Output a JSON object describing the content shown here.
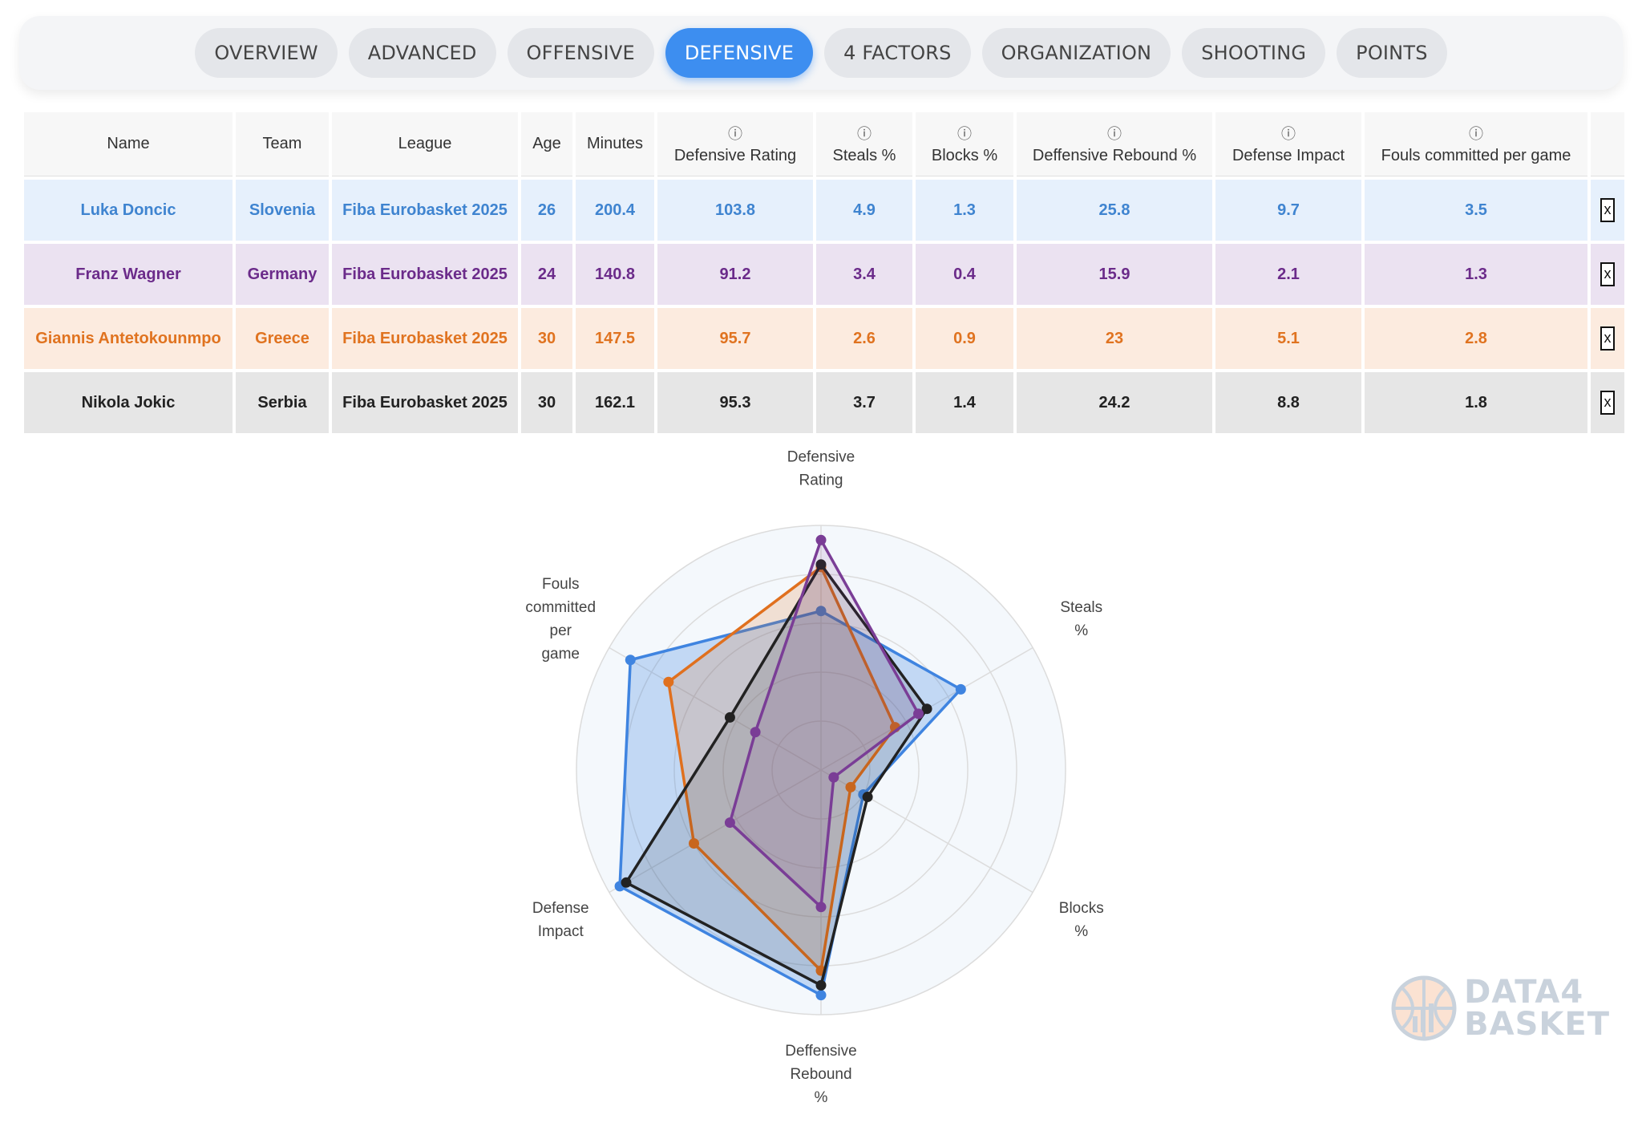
{
  "tabs": [
    {
      "label": "OVERVIEW",
      "active": false
    },
    {
      "label": "ADVANCED",
      "active": false
    },
    {
      "label": "OFFENSIVE",
      "active": false
    },
    {
      "label": "DEFENSIVE",
      "active": true
    },
    {
      "label": "4 FACTORS",
      "active": false
    },
    {
      "label": "ORGANIZATION",
      "active": false
    },
    {
      "label": "SHOOTING",
      "active": false
    },
    {
      "label": "POINTS",
      "active": false
    }
  ],
  "table": {
    "headers": [
      "Name",
      "Team",
      "League",
      "Age",
      "Minutes",
      "Defensive Rating",
      "Steals %",
      "Blocks %",
      "Deffensive Rebound %",
      "Defense Impact",
      "Fouls committed per game"
    ],
    "info_icon": "i",
    "remove_label": "x",
    "rows": [
      {
        "name": "Luka Doncic",
        "team": "Slovenia",
        "league": "Fiba Eurobasket 2025",
        "age": "26",
        "minutes": "200.4",
        "def_rating": "103.8",
        "steals": "4.9",
        "blocks": "1.3",
        "dreb": "25.8",
        "impact": "9.7",
        "fouls": "3.5"
      },
      {
        "name": "Franz Wagner",
        "team": "Germany",
        "league": "Fiba Eurobasket 2025",
        "age": "24",
        "minutes": "140.8",
        "def_rating": "91.2",
        "steals": "3.4",
        "blocks": "0.4",
        "dreb": "15.9",
        "impact": "2.1",
        "fouls": "1.3"
      },
      {
        "name": "Giannis Antetokounmpo",
        "team": "Greece",
        "league": "Fiba Eurobasket 2025",
        "age": "30",
        "minutes": "147.5",
        "def_rating": "95.7",
        "steals": "2.6",
        "blocks": "0.9",
        "dreb": "23",
        "impact": "5.1",
        "fouls": "2.8"
      },
      {
        "name": "Nikola Jokic",
        "team": "Serbia",
        "league": "Fiba Eurobasket 2025",
        "age": "30",
        "minutes": "162.1",
        "def_rating": "95.3",
        "steals": "3.7",
        "blocks": "1.4",
        "dreb": "24.2",
        "impact": "8.8",
        "fouls": "1.8"
      }
    ]
  },
  "colors": {
    "series": [
      "#3f84e0",
      "#7a3d96",
      "#e0701e",
      "#222222"
    ],
    "active_tab": "#3d8ef0"
  },
  "chart_data": {
    "type": "radar",
    "axes": [
      [
        "Defensive",
        "Rating"
      ],
      [
        "Steals",
        "%"
      ],
      [
        "Blocks",
        "%"
      ],
      [
        "Deffensive",
        "Rebound",
        "%"
      ],
      [
        "Defense",
        "Impact"
      ],
      [
        "Fouls",
        "committed",
        "per",
        "game"
      ]
    ],
    "series": [
      {
        "values": [
          0.65,
          0.66,
          0.2,
          0.92,
          0.95,
          0.9
        ]
      },
      {
        "values": [
          0.94,
          0.46,
          0.06,
          0.56,
          0.43,
          0.31
        ]
      },
      {
        "values": [
          0.83,
          0.35,
          0.14,
          0.82,
          0.6,
          0.72
        ]
      },
      {
        "values": [
          0.84,
          0.5,
          0.22,
          0.88,
          0.92,
          0.43
        ]
      }
    ],
    "rings": 5,
    "scale": [
      0,
      1
    ]
  },
  "logo": {
    "line1": "DATA4",
    "line2": "BASKET"
  }
}
